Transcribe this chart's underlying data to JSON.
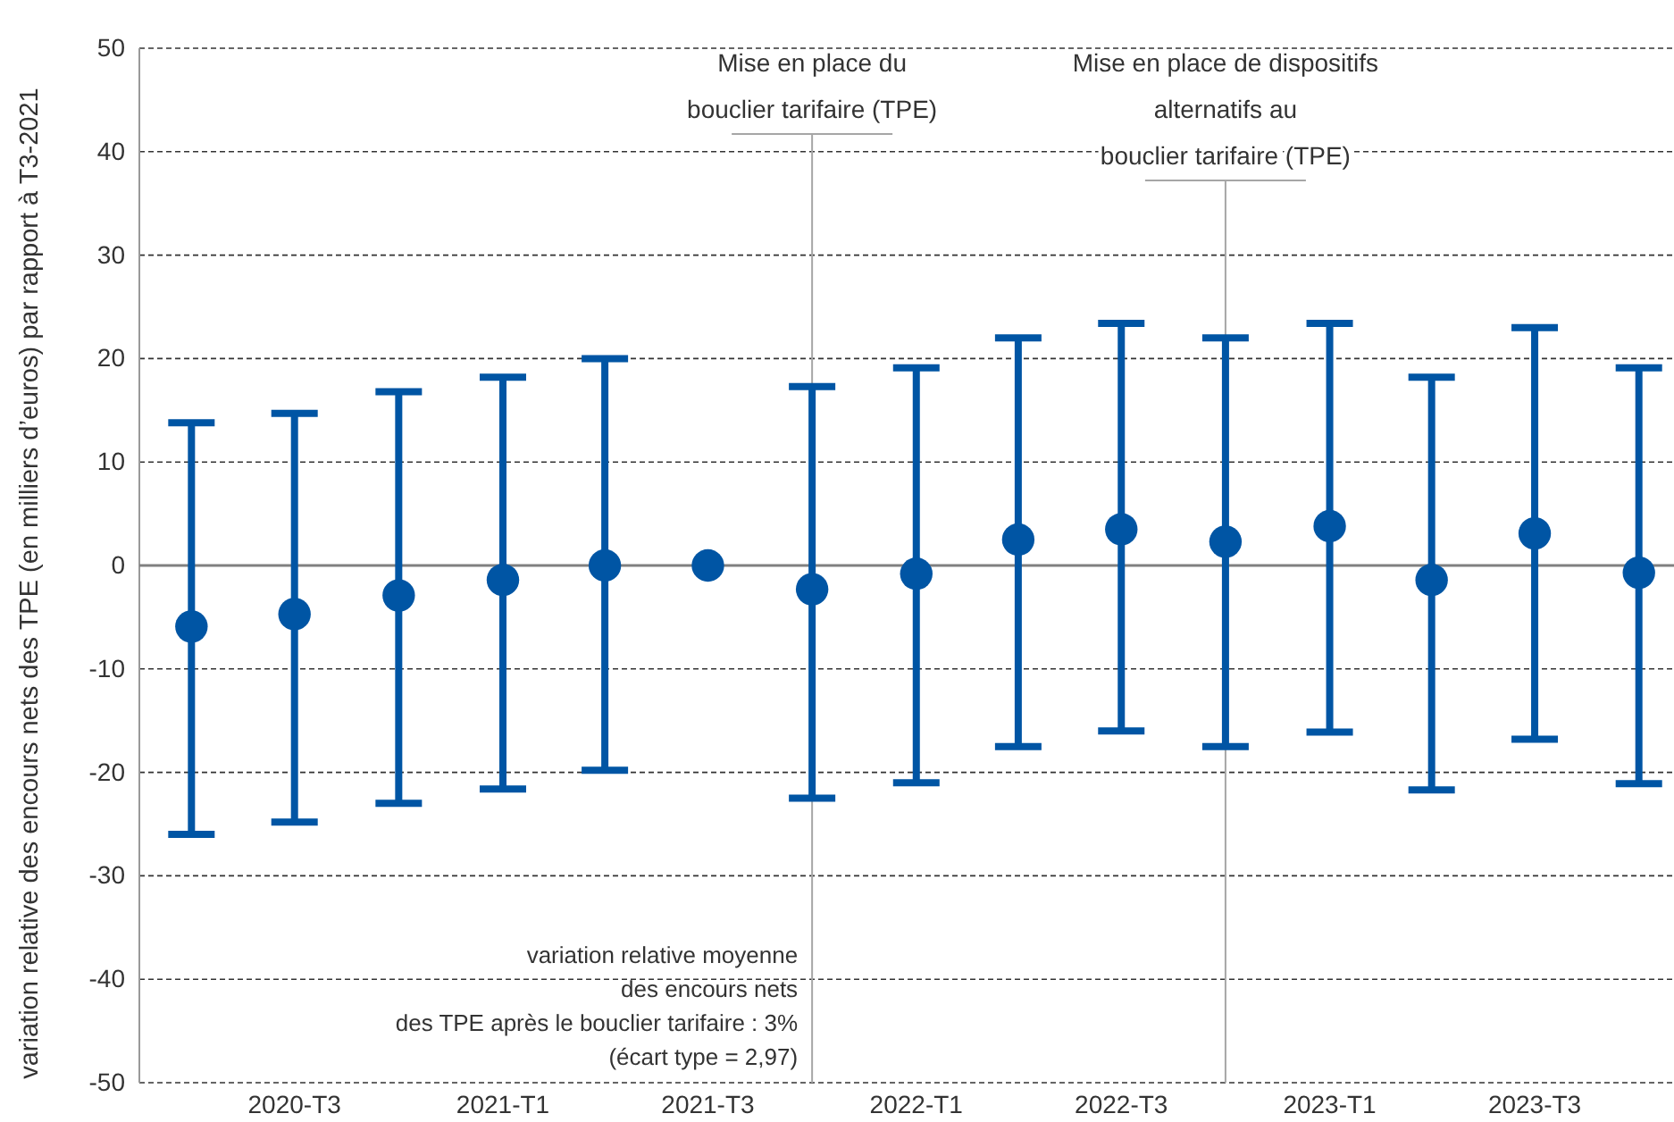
{
  "chart_data": {
    "type": "scatter",
    "ylabel": "variation relative des encours nets des TPE (en milliers d’euros) par rapport à T3-2021",
    "x": [
      "2020-04",
      "2020-07",
      "2020-10",
      "2021-01",
      "2021-04",
      "2021-07",
      "2021-10",
      "2022-01",
      "2022-04",
      "2022-07",
      "2022-10",
      "2023-01",
      "2023-04",
      "2023-07",
      "2023-10"
    ],
    "series": [
      {
        "color": "#0055a4",
        "values": [
          -5.9,
          -4.7,
          -2.9,
          -1.4,
          0,
          0,
          -2.3,
          -0.8,
          2.5,
          3.5,
          2.3,
          3.8,
          -1.4,
          3.1,
          -0.7
        ],
        "errors": [
          [
            -26.0,
            13.8
          ],
          [
            -24.8,
            14.7
          ],
          [
            -23.0,
            16.8
          ],
          [
            -21.6,
            18.2
          ],
          [
            -19.8,
            20
          ],
          null,
          [
            -22.5,
            17.3
          ],
          [
            -21.0,
            19.1
          ],
          [
            -17.5,
            22.0
          ],
          [
            -16.0,
            23.4
          ],
          [
            -17.5,
            22.0
          ],
          [
            -16.1,
            23.4
          ],
          [
            -21.7,
            18.2
          ],
          [
            -16.8,
            23.0
          ],
          [
            -21.1,
            19.1
          ]
        ]
      }
    ],
    "xlim": [
      "2020-02-15",
      "2023-11-01"
    ],
    "xticks": [
      {
        "value": "2020-07",
        "label": "2020-T3"
      },
      {
        "value": "2021-01",
        "label": "2021-T1"
      },
      {
        "value": "2021-07",
        "label": "2021-T3"
      },
      {
        "value": "2022-01",
        "label": "2022-T1"
      },
      {
        "value": "2022-07",
        "label": "2022-T3"
      },
      {
        "value": "2023-01",
        "label": "2023-T1"
      },
      {
        "value": "2023-07",
        "label": "2023-T3"
      }
    ],
    "ylim": [
      -50,
      50
    ],
    "yticks": [
      -50,
      -40,
      -30,
      -20,
      -10,
      0,
      10,
      20,
      30,
      40,
      50
    ],
    "grid": "y",
    "marker": "circle",
    "ref_lines": [
      {
        "axis": "y",
        "value": 0,
        "color": "#808080",
        "line_style": "solid"
      },
      {
        "axis": "x",
        "value": "2021-10",
        "label": "Mise en place du\nbouclier tarifaire (TPE)",
        "color": "#a6a6a6"
      },
      {
        "axis": "x",
        "value": "2022-10",
        "label": "Mise en place de dispositifs\nalternatifs au\nbouclier tarifaire (TPE)",
        "color": "#a6a6a6"
      }
    ],
    "annotations": [
      "variation relative moyenne\ndes encours nets\ndes TPE après le bouclier tarifaire : 3%\n(écart type = 2,97)"
    ]
  }
}
